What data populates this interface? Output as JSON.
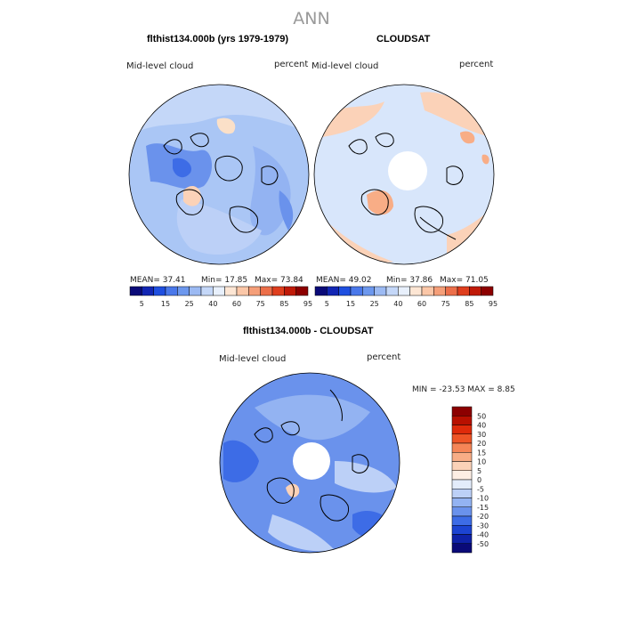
{
  "title": "ANN",
  "colors": {
    "dark_blue": "#0a0a78",
    "light_blue": "#aac6f5",
    "pale_blue": "#d8e6fb",
    "blue": "#6a95ec",
    "beige": "#fbe0c8",
    "orange": "#f4b38f",
    "dark_red": "#7a0000",
    "pole_hole": "#ffffff",
    "coast": "#000000"
  },
  "panels": [
    {
      "title": "flthist134.000b (yrs 1979-1979)",
      "left_label": "Mid-level cloud",
      "right_label": "percent",
      "stats": {
        "mean": "MEAN= 37.41",
        "min": "Min= 17.85",
        "max": "Max= 73.84"
      }
    },
    {
      "title": "CLOUDSAT",
      "left_label": "Mid-level cloud",
      "right_label": "percent",
      "stats": {
        "mean": "MEAN= 49.02",
        "min": "Min= 37.86",
        "max": "Max= 71.05"
      }
    },
    {
      "title": "flthist134.000b - CLOUDSAT",
      "left_label": "Mid-level cloud",
      "right_label": "percent",
      "stats": {
        "minmax": "MIN = -23.53 MAX = 8.85"
      }
    }
  ],
  "colorbar_abs": {
    "labels": [
      "5",
      "15",
      "25",
      "40",
      "60",
      "75",
      "85",
      "95"
    ],
    "colors": [
      "#0a0a78",
      "#1226b4",
      "#1f4fe0",
      "#4a78ea",
      "#6d98ee",
      "#9cbaf3",
      "#c4d7f8",
      "#e8f0fc",
      "#fde6d4",
      "#fbc7a8",
      "#f59f79",
      "#ec6f4a",
      "#df3e1e",
      "#c01a08",
      "#8c0000"
    ]
  },
  "colorbar_diff": {
    "labels": [
      "50",
      "40",
      "30",
      "20",
      "15",
      "10",
      "5",
      "0",
      "-5",
      "-10",
      "-15",
      "-20",
      "-30",
      "-40",
      "-50"
    ],
    "colors": [
      "#8c0000",
      "#b81000",
      "#df2a0a",
      "#ee5426",
      "#f58557",
      "#f8ad86",
      "#fbd2b8",
      "#fdeee4",
      "#e3ecfb",
      "#bcd0f7",
      "#93b3f2",
      "#6a92ec",
      "#3d6ce6",
      "#1c44d2",
      "#0f22a8",
      "#0a0a78"
    ]
  },
  "chart_data": [
    {
      "type": "heatmap",
      "title": "flthist134.000b (yrs 1979-1979)",
      "variable": "Mid-level cloud",
      "units": "percent",
      "mean": 37.41,
      "min": 17.85,
      "max": 73.84,
      "levels": [
        5,
        15,
        25,
        40,
        60,
        75,
        85,
        95
      ]
    },
    {
      "type": "heatmap",
      "title": "CLOUDSAT",
      "variable": "Mid-level cloud",
      "units": "percent",
      "mean": 49.02,
      "min": 37.86,
      "max": 71.05,
      "levels": [
        5,
        15,
        25,
        40,
        60,
        75,
        85,
        95
      ]
    },
    {
      "type": "heatmap",
      "title": "flthist134.000b - CLOUDSAT",
      "variable": "Mid-level cloud",
      "units": "percent",
      "min": -23.53,
      "max": 8.85,
      "levels": [
        -50,
        -40,
        -30,
        -20,
        -15,
        -10,
        -5,
        0,
        5,
        10,
        15,
        20,
        30,
        40,
        50
      ]
    }
  ]
}
